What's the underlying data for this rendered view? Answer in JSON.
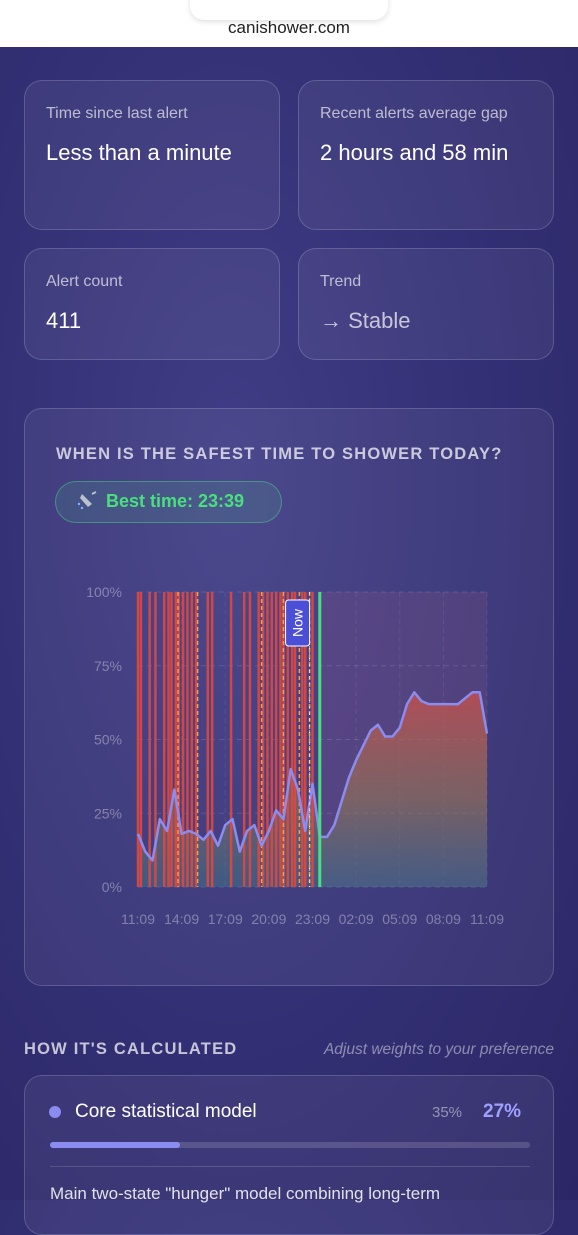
{
  "browser": {
    "url": "canishower.com"
  },
  "stats": [
    {
      "label": "Time since last alert",
      "value": "Less than a minute"
    },
    {
      "label": "Recent alerts average gap",
      "value": "2 hours and 58 min"
    },
    {
      "label": "Alert count",
      "value": 411
    },
    {
      "label": "Trend",
      "value": "→ Stable"
    }
  ],
  "chart_data": {
    "type": "line",
    "title": "WHEN IS THE SAFEST TIME TO SHOWER TODAY?",
    "best_time": {
      "label": "Best time: 23:39",
      "x": 12.5,
      "color": "#4ade80"
    },
    "now": {
      "label": "Now",
      "x": 11.8
    },
    "x": [
      0,
      0.5,
      1,
      1.5,
      2,
      2.5,
      3,
      3.5,
      4,
      4.5,
      5,
      5.5,
      6,
      6.5,
      7,
      7.5,
      8,
      8.5,
      9,
      9.5,
      10,
      10.5,
      11,
      11.5,
      12,
      12.5,
      13,
      13.5,
      14,
      14.5,
      15,
      15.5,
      16,
      16.5,
      17,
      17.5,
      18,
      18.5,
      19,
      19.5,
      20,
      20.5,
      21,
      21.5,
      22,
      22.5,
      23,
      23.5,
      24
    ],
    "series": [
      {
        "color": "#8b8cf0",
        "values": [
          18,
          12,
          9,
          23,
          19,
          33,
          18,
          19,
          18,
          16,
          19,
          14,
          21,
          23,
          12,
          19,
          21,
          14,
          19,
          26,
          23,
          40,
          33,
          19,
          35,
          17,
          17,
          21,
          29,
          37,
          43,
          48,
          53,
          55,
          51,
          51,
          54,
          62,
          66,
          63,
          62,
          62,
          62,
          62,
          62,
          64,
          66,
          66,
          52
        ]
      }
    ],
    "alerts": [
      0.0,
      0.2,
      0.8,
      1.2,
      1.8,
      2.1,
      2.3,
      2.6,
      2.8,
      3.1,
      3.4,
      3.7,
      4.0,
      4.8,
      5.1,
      6.4,
      7.3,
      7.7,
      8.3,
      8.6,
      8.9,
      9.2,
      9.5,
      9.8,
      10.0,
      10.3,
      10.6,
      10.8,
      11.3,
      11.5,
      12.0
    ],
    "alert_color": "#e0483e",
    "dashed": [
      2.75,
      4.1,
      8.5,
      10.0,
      11.1,
      11.8
    ],
    "dashed_color": "#f0a050",
    "xlim": [
      0,
      24
    ],
    "xticks": [
      {
        "value": 0,
        "label": "11:09"
      },
      {
        "value": 3,
        "label": "14:09"
      },
      {
        "value": 6,
        "label": "17:09"
      },
      {
        "value": 9,
        "label": "20:09"
      },
      {
        "value": 12,
        "label": "23:09"
      },
      {
        "value": 15,
        "label": "02:09"
      },
      {
        "value": 18,
        "label": "05:09"
      },
      {
        "value": 21,
        "label": "08:09"
      },
      {
        "value": 24,
        "label": "11:09"
      }
    ],
    "ylim": [
      0,
      100
    ],
    "yticks": [
      {
        "value": 0,
        "label": "0%"
      },
      {
        "value": 25,
        "label": "25%"
      },
      {
        "value": 50,
        "label": "50%"
      },
      {
        "value": 75,
        "label": "75%"
      },
      {
        "value": 100,
        "label": "100%"
      }
    ],
    "grid": true
  },
  "calculation": {
    "title": "HOW IT'S CALCULATED",
    "hint": "Adjust weights to your preference",
    "models": [
      {
        "name": "Core statistical model",
        "default_weight": "35%",
        "weight": {
          "value": 27,
          "label": "27%"
        },
        "description": "Main two-state \"hunger\" model combining long-term"
      }
    ]
  }
}
